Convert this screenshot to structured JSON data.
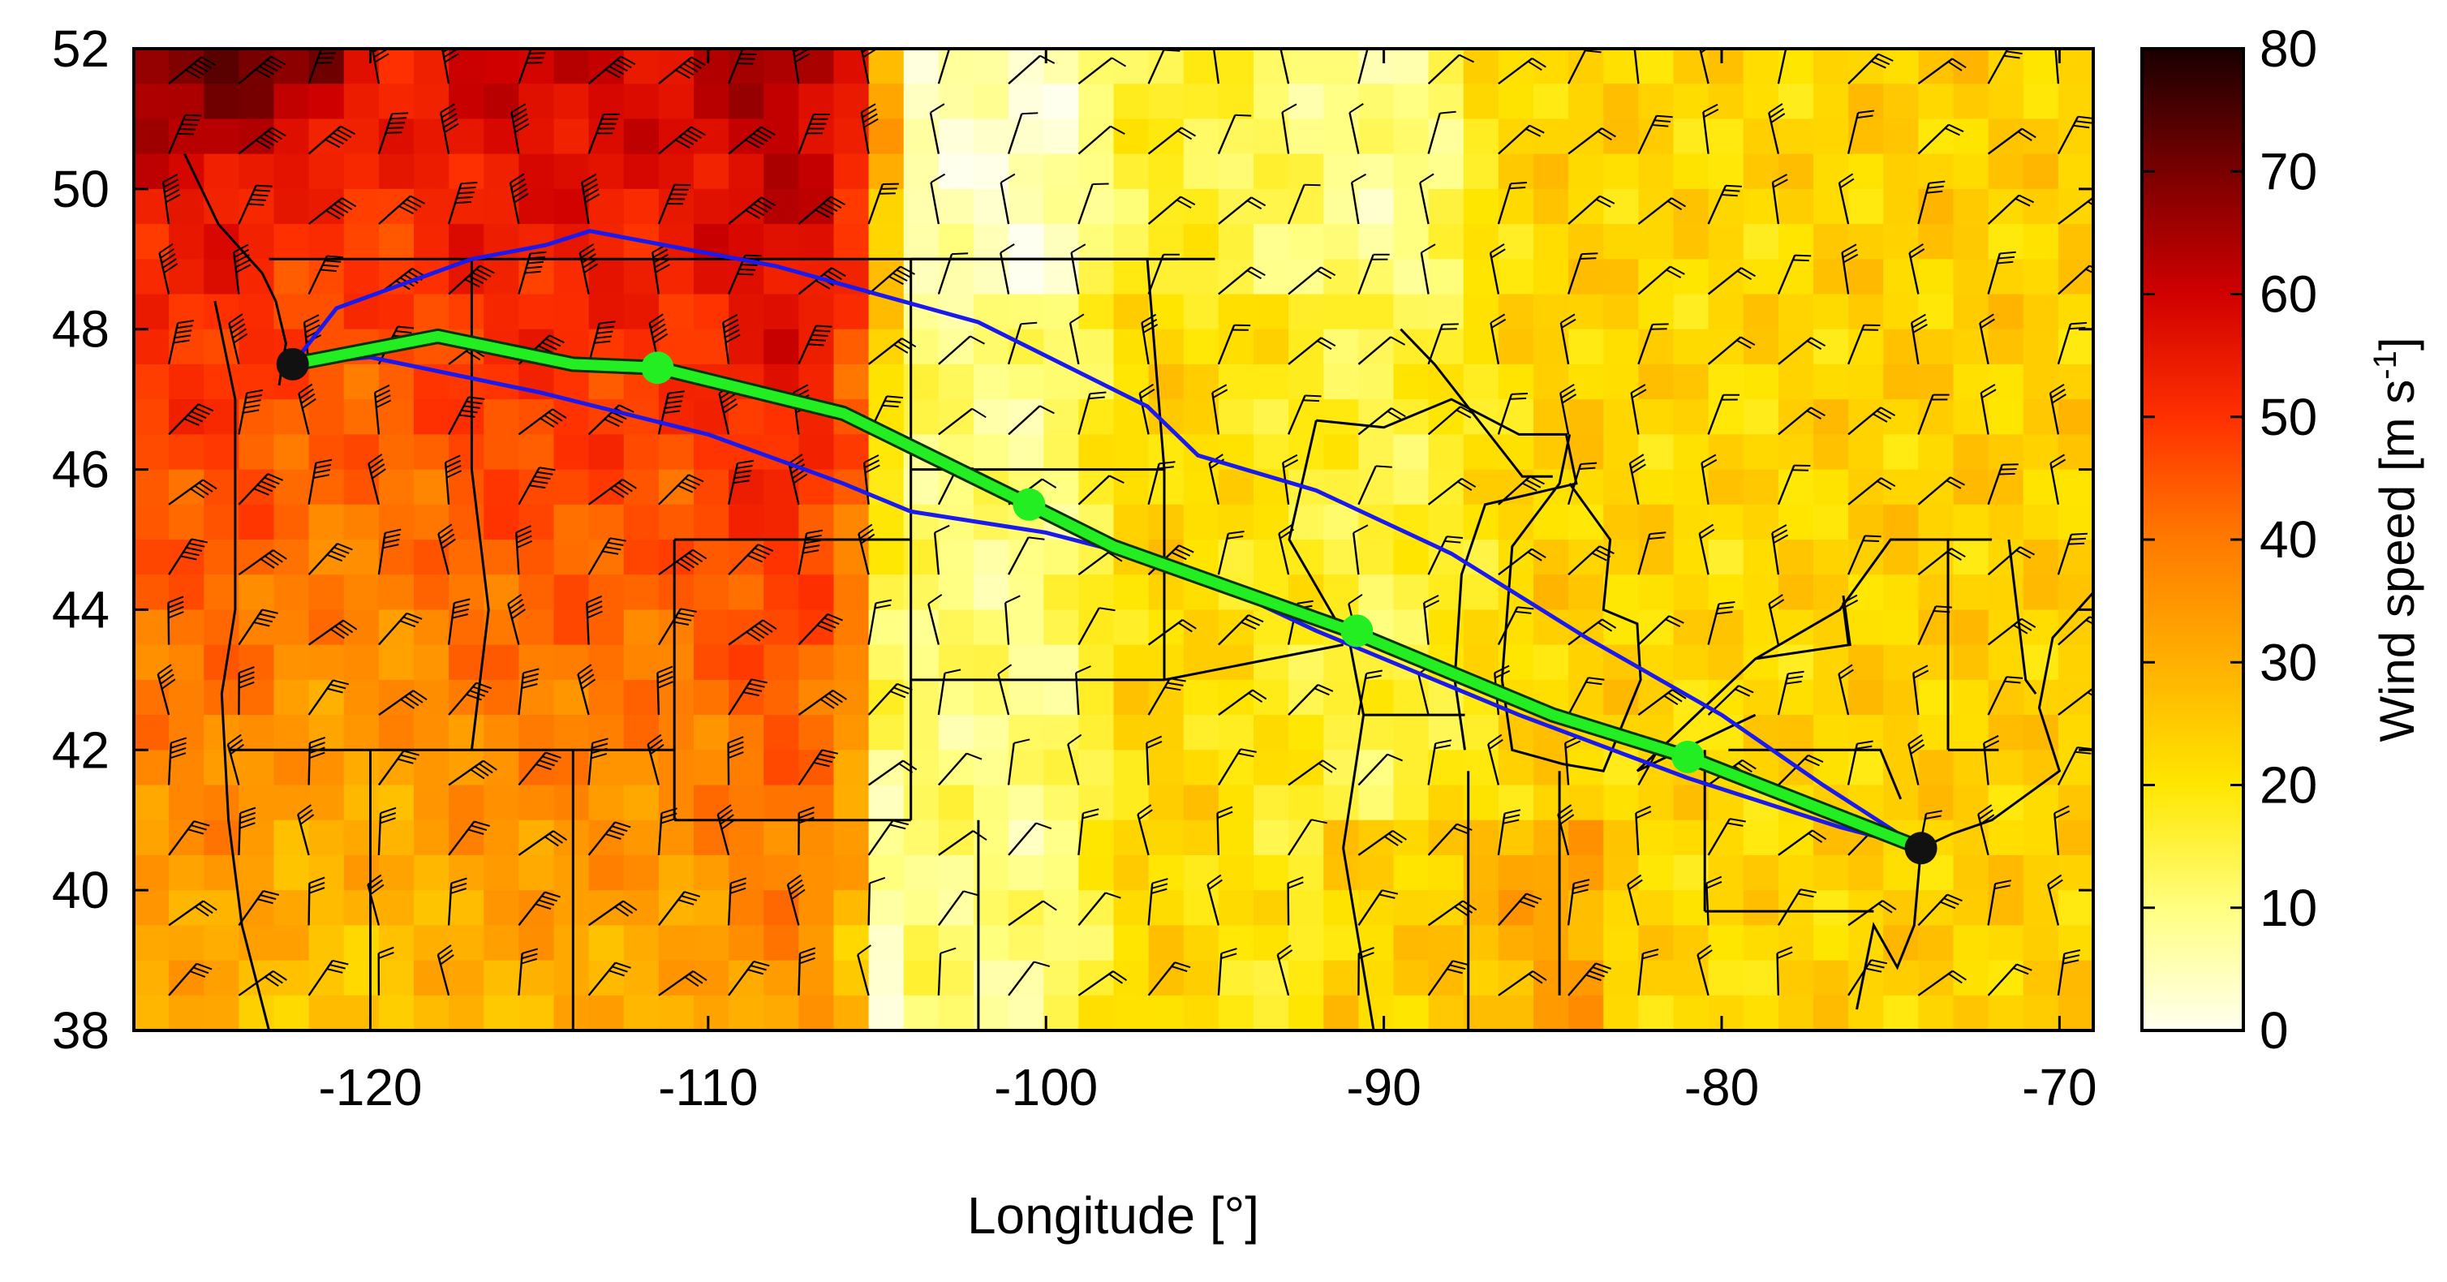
{
  "chart_data": {
    "type": "heatmap",
    "xlabel": "Longitude [°]",
    "ylabel": "",
    "xlim": [
      -127,
      -69
    ],
    "ylim": [
      38,
      52
    ],
    "x_ticks": [
      -120,
      -110,
      -100,
      -90,
      -80,
      -70
    ],
    "y_ticks": [
      38,
      40,
      42,
      44,
      46,
      48,
      50,
      52
    ],
    "colorbar": {
      "label": "Wind speed [m s",
      "label_exponent": "-1",
      "label_suffix": "]",
      "range": [
        0,
        80
      ],
      "ticks": [
        0,
        10,
        20,
        30,
        40,
        50,
        60,
        70,
        80
      ],
      "colors": [
        "#fffff0",
        "#ffff80",
        "#ffe600",
        "#ffb000",
        "#ff7a00",
        "#ff3000",
        "#d00000",
        "#7a0000",
        "#1a0000"
      ]
    },
    "colors": {
      "flight_track": "#22ee22",
      "envelope": "#1a1aee",
      "endpoints": "#111111",
      "borders": "#000000"
    },
    "series": [
      {
        "role": "optimal-track",
        "points": [
          [
            -122.3,
            47.5
          ],
          [
            -118,
            47.9
          ],
          [
            -114,
            47.5
          ],
          [
            -111.5,
            47.45
          ],
          [
            -106,
            46.8
          ],
          [
            -100.5,
            45.5
          ],
          [
            -98,
            44.9
          ],
          [
            -91,
            43.7
          ],
          [
            -85,
            42.5
          ],
          [
            -81,
            41.9
          ],
          [
            -74.1,
            40.6
          ]
        ]
      },
      {
        "role": "waypoints",
        "points": [
          [
            -111.5,
            47.45
          ],
          [
            -100.5,
            45.5
          ],
          [
            -90.8,
            43.7
          ],
          [
            -81,
            41.9
          ]
        ]
      },
      {
        "role": "northern-envelope",
        "points": [
          [
            -122.3,
            47.5
          ],
          [
            -121,
            48.3
          ],
          [
            -117,
            49.0
          ],
          [
            -114.8,
            49.2
          ],
          [
            -113.5,
            49.4
          ],
          [
            -108,
            48.9
          ],
          [
            -102,
            48.1
          ],
          [
            -97,
            46.9
          ],
          [
            -95.5,
            46.2
          ],
          [
            -92,
            45.7
          ],
          [
            -88,
            44.8
          ],
          [
            -84,
            43.6
          ],
          [
            -80,
            42.5
          ],
          [
            -77,
            41.5
          ],
          [
            -74.1,
            40.6
          ]
        ]
      },
      {
        "role": "southern-envelope",
        "points": [
          [
            -122.3,
            47.5
          ],
          [
            -120,
            47.6
          ],
          [
            -115,
            47.1
          ],
          [
            -110,
            46.5
          ],
          [
            -106,
            45.8
          ],
          [
            -104,
            45.4
          ],
          [
            -100,
            45.1
          ],
          [
            -96,
            44.6
          ],
          [
            -92,
            43.7
          ],
          [
            -86,
            42.5
          ],
          [
            -81,
            41.6
          ],
          [
            -76.5,
            40.9
          ],
          [
            -74.1,
            40.6
          ]
        ]
      },
      {
        "role": "endpoints",
        "points": [
          [
            -122.3,
            47.5
          ],
          [
            -74.1,
            40.6
          ]
        ]
      }
    ],
    "wind_field": {
      "columns": 28,
      "rows": 14,
      "speed_profile_by_longitude": [
        [
          -127,
          44
        ],
        [
          -124,
          45
        ],
        [
          -122,
          40
        ],
        [
          -119,
          40
        ],
        [
          -117,
          44
        ],
        [
          -114,
          45
        ],
        [
          -111,
          44
        ],
        [
          -108,
          50
        ],
        [
          -106,
          46
        ],
        [
          -104.5,
          12
        ],
        [
          -100,
          9
        ],
        [
          -97,
          24
        ],
        [
          -90,
          14
        ],
        [
          -85,
          24
        ],
        [
          -80,
          22
        ],
        [
          -75,
          24
        ],
        [
          -69,
          24
        ]
      ]
    },
    "borders": [
      [
        [
          -123,
          49
        ],
        [
          -95,
          49
        ]
      ],
      [
        [
          -117,
          49
        ],
        [
          -117,
          46
        ]
      ],
      [
        [
          -117,
          46
        ],
        [
          -116.5,
          44
        ],
        [
          -117,
          42
        ]
      ],
      [
        [
          -124.2,
          42
        ],
        [
          -111,
          42
        ]
      ],
      [
        [
          -120,
          42
        ],
        [
          -120,
          38
        ]
      ],
      [
        [
          -114,
          42
        ],
        [
          -114,
          38
        ]
      ],
      [
        [
          -111,
          45
        ],
        [
          -104,
          45
        ]
      ],
      [
        [
          -111,
          45
        ],
        [
          -111,
          41
        ]
      ],
      [
        [
          -111,
          41
        ],
        [
          -104,
          41
        ]
      ],
      [
        [
          -104,
          49
        ],
        [
          -104,
          41
        ]
      ],
      [
        [
          -104,
          46
        ],
        [
          -96.5,
          46
        ]
      ],
      [
        [
          -104,
          43
        ],
        [
          -96.5,
          43
        ]
      ],
      [
        [
          -102,
          41
        ],
        [
          -102,
          37
        ]
      ],
      [
        [
          -104,
          49
        ],
        [
          -97,
          49
        ],
        [
          -96.5,
          46
        ],
        [
          -96.5,
          43
        ]
      ],
      [
        [
          -96.5,
          43
        ],
        [
          -91.2,
          43.5
        ]
      ],
      [
        [
          -92,
          46.7
        ],
        [
          -92.8,
          45
        ],
        [
          -91,
          43.5
        ],
        [
          -90.6,
          42.5
        ],
        [
          -91.2,
          40.6
        ],
        [
          -90.3,
          38
        ]
      ],
      [
        [
          -87.6,
          42.5
        ],
        [
          -90.6,
          42.5
        ]
      ],
      [
        [
          -87.5,
          41.7
        ],
        [
          -87.5,
          38
        ]
      ],
      [
        [
          -84.8,
          41.7
        ],
        [
          -84.8,
          38.5
        ]
      ],
      [
        [
          -80.5,
          42
        ],
        [
          -80.5,
          39.7
        ]
      ],
      [
        [
          -80.5,
          39.7
        ],
        [
          -75.5,
          39.7
        ]
      ],
      [
        [
          -79.8,
          42
        ],
        [
          -75.3,
          42
        ],
        [
          -74.7,
          41.3
        ]
      ],
      [
        [
          -71.8,
          42
        ],
        [
          -73.3,
          42
        ]
      ],
      [
        [
          -73.3,
          42
        ],
        [
          -73.3,
          45
        ]
      ],
      [
        [
          -71.5,
          45
        ],
        [
          -71,
          43
        ],
        [
          -70.7,
          42.8
        ]
      ],
      [
        [
          -72,
          45
        ],
        [
          -75,
          45
        ],
        [
          -76.5,
          44
        ],
        [
          -79,
          43.3
        ],
        [
          -82.5,
          41.7
        ],
        [
          -79,
          42.5
        ]
      ]
    ],
    "coastlines": [
      [
        [
          -124.6,
          48.4
        ],
        [
          -124,
          47
        ],
        [
          -124,
          46.2
        ],
        [
          -124,
          44
        ],
        [
          -124.4,
          42.8
        ],
        [
          -124.2,
          41
        ],
        [
          -123.8,
          39.5
        ],
        [
          -123,
          38
        ]
      ],
      [
        [
          -125.5,
          50.5
        ],
        [
          -124.5,
          49.5
        ],
        [
          -123.2,
          48.8
        ],
        [
          -122.8,
          48.4
        ],
        [
          -122.5,
          47.8
        ],
        [
          -122.7,
          47.2
        ]
      ],
      [
        [
          -92,
          46.7
        ],
        [
          -90,
          46.6
        ],
        [
          -88,
          47
        ],
        [
          -86,
          46.5
        ],
        [
          -84.6,
          46.5
        ],
        [
          -84.3,
          45.8
        ],
        [
          -87,
          45.5
        ],
        [
          -87.7,
          44.5
        ],
        [
          -87.9,
          43
        ],
        [
          -87.6,
          42
        ]
      ],
      [
        [
          -84.5,
          46.5
        ],
        [
          -84.8,
          45.8
        ],
        [
          -86.2,
          44.9
        ],
        [
          -86.5,
          43
        ],
        [
          -86.2,
          42
        ],
        [
          -84.7,
          41.8
        ],
        [
          -83.5,
          41.7
        ],
        [
          -82.4,
          43
        ],
        [
          -82.5,
          43.8
        ],
        [
          -83.5,
          44
        ],
        [
          -83.3,
          45
        ],
        [
          -84.5,
          45.8
        ]
      ],
      [
        [
          -79,
          43.3
        ],
        [
          -76.2,
          43.5
        ],
        [
          -76.4,
          44.2
        ]
      ],
      [
        [
          -74.1,
          40.6
        ],
        [
          -73.2,
          40.8
        ],
        [
          -72,
          41
        ],
        [
          -70,
          41.7
        ],
        [
          -70.6,
          42.6
        ],
        [
          -70.2,
          43.6
        ],
        [
          -68.9,
          44.3
        ]
      ],
      [
        [
          -74.1,
          40.6
        ],
        [
          -74.3,
          39.5
        ],
        [
          -74.8,
          38.9
        ],
        [
          -75.5,
          39.5
        ],
        [
          -76,
          38.3
        ]
      ],
      [
        [
          -85,
          45.9
        ],
        [
          -85.9,
          45.9
        ],
        [
          -88.5,
          47.5
        ],
        [
          -89.5,
          48
        ]
      ]
    ]
  }
}
